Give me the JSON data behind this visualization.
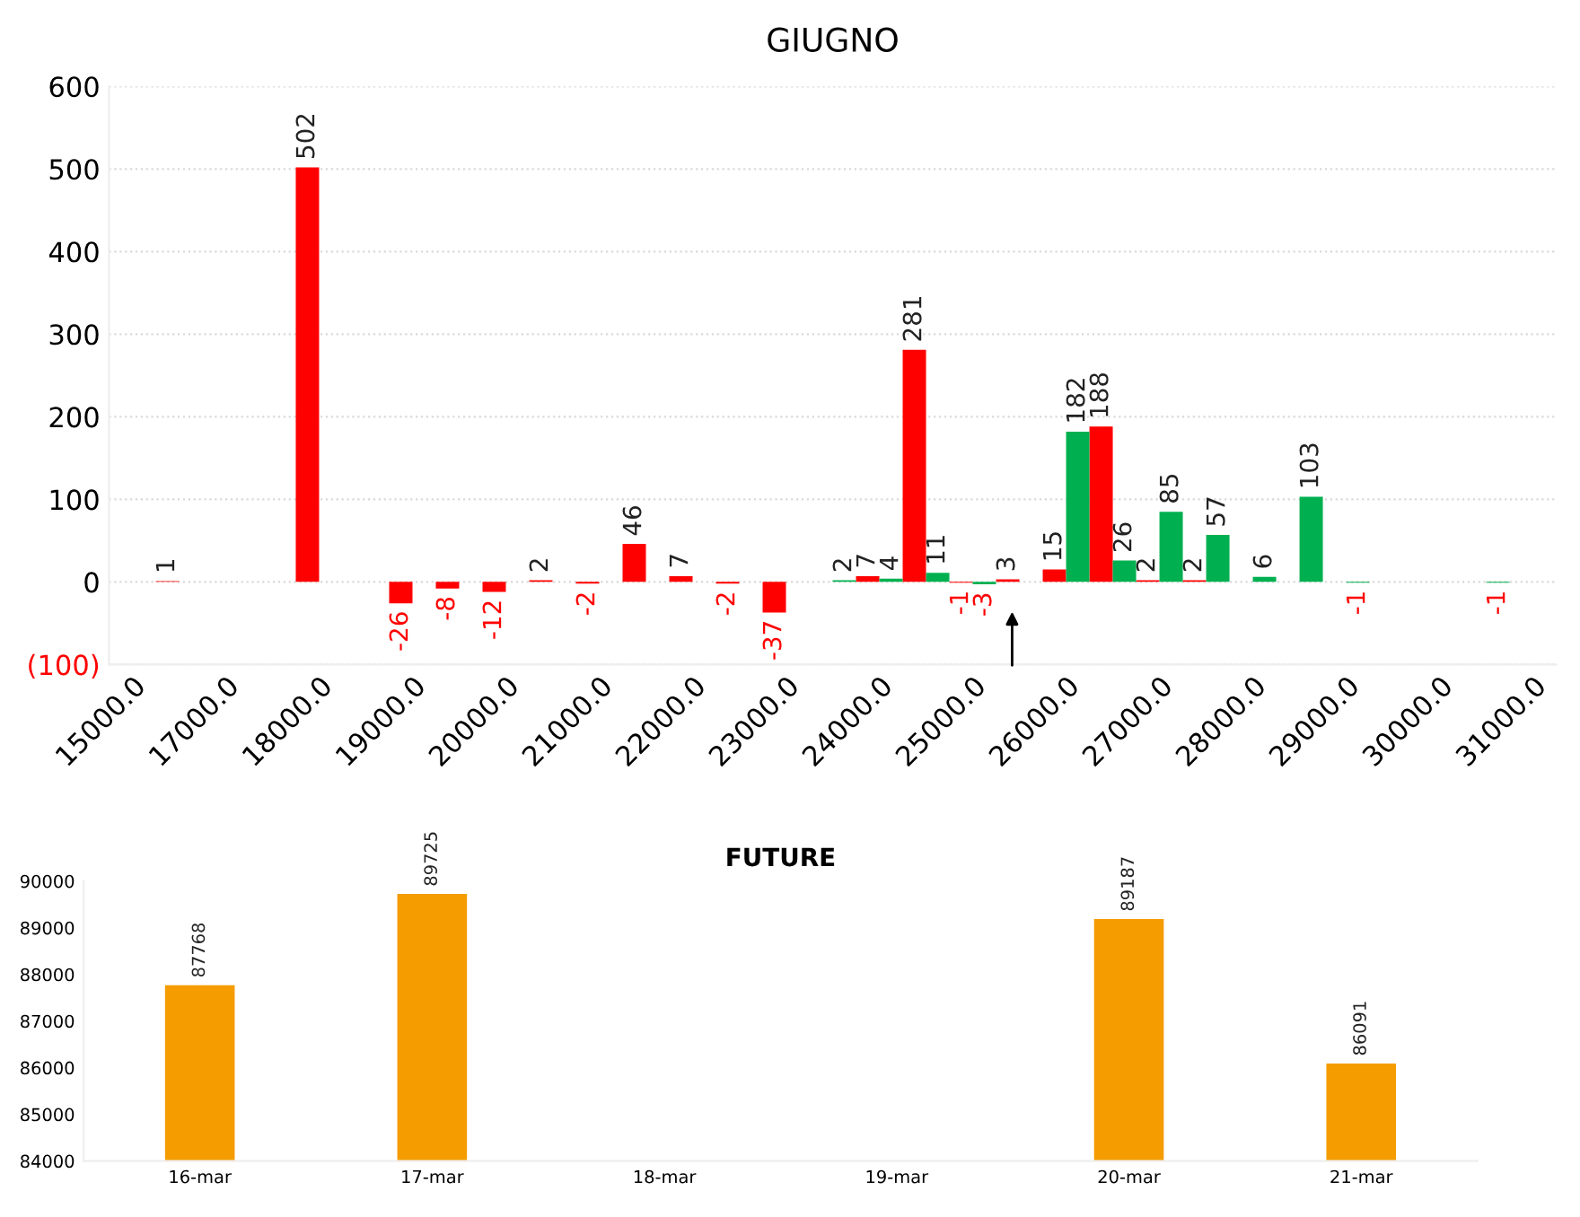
{
  "chart_data": [
    {
      "type": "bar",
      "title": "GIUGNO",
      "categories": [
        "15000.0",
        null,
        "17000.0",
        null,
        "18000.0",
        null,
        "19000.0",
        null,
        "20000.0",
        null,
        "21000.0",
        null,
        "22000.0",
        null,
        "23000.0",
        null,
        "24000.0",
        null,
        "25000.0",
        null,
        "26000.0",
        null,
        "27000.0",
        null,
        "28000.0",
        null,
        "29000.0",
        null,
        "30000.0",
        null,
        "31000.0"
      ],
      "series": [
        {
          "color": "#ff0000",
          "values": [
            null,
            1,
            null,
            null,
            502,
            null,
            -26,
            -8,
            -12,
            2,
            -2,
            46,
            7,
            -2,
            -37,
            null,
            7,
            281,
            -1,
            3,
            15,
            188,
            2,
            2,
            null,
            null,
            null,
            null,
            null,
            null,
            null
          ]
        },
        {
          "color": "#00b050",
          "values": [
            null,
            null,
            null,
            null,
            null,
            null,
            null,
            null,
            null,
            null,
            null,
            null,
            null,
            null,
            null,
            2,
            4,
            11,
            -3,
            null,
            182,
            26,
            85,
            57,
            6,
            103,
            -1,
            null,
            null,
            -1,
            null
          ]
        }
      ],
      "ylim": [
        -100,
        600
      ],
      "yticks": [
        {
          "value": -100,
          "label": "(100)"
        },
        0,
        100,
        200,
        300,
        400,
        500,
        600
      ],
      "grid": "y",
      "data_labels": true
    },
    {
      "type": "bar",
      "title": "FUTURE",
      "categories": [
        "16-mar",
        "17-mar",
        "18-mar",
        "19-mar",
        "20-mar",
        "21-mar"
      ],
      "values": [
        87768,
        89725,
        null,
        null,
        89187,
        86091
      ],
      "color": "#f59c00",
      "ylim": [
        84000,
        90000
      ],
      "yticks": [
        84000,
        85000,
        86000,
        87000,
        88000,
        89000,
        90000
      ],
      "data_labels": true
    }
  ]
}
